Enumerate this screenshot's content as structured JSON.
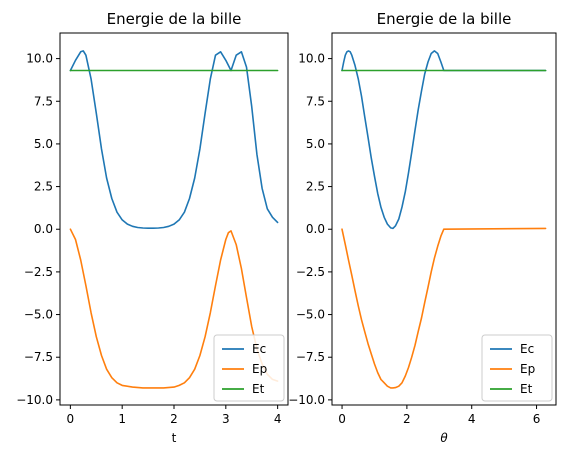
{
  "chart_data": [
    {
      "type": "line",
      "title": "Energie de la bille",
      "xlabel": "t",
      "xlim": [
        -0.2,
        4.2
      ],
      "ylim": [
        -10.3,
        11.5
      ],
      "xticks": [
        0,
        1,
        2,
        3,
        4
      ],
      "yticks": [
        -10.0,
        -7.5,
        -5.0,
        -2.5,
        0.0,
        2.5,
        5.0,
        7.5,
        10.0
      ],
      "legend_position": "lower-right",
      "series": [
        {
          "name": "Ec",
          "color": "#1f77b4",
          "x": [
            0.0,
            0.1,
            0.2,
            0.25,
            0.3,
            0.4,
            0.5,
            0.6,
            0.7,
            0.8,
            0.9,
            1.0,
            1.1,
            1.2,
            1.3,
            1.4,
            1.5,
            1.6,
            1.7,
            1.8,
            1.9,
            2.0,
            2.1,
            2.2,
            2.3,
            2.4,
            2.5,
            2.6,
            2.7,
            2.8,
            2.9,
            3.0,
            3.1,
            3.2,
            3.3,
            3.4,
            3.5,
            3.6,
            3.7,
            3.8,
            3.9,
            4.0
          ],
          "y": [
            9.3,
            9.9,
            10.4,
            10.45,
            10.2,
            8.8,
            6.8,
            4.7,
            3.0,
            1.8,
            1.0,
            0.55,
            0.3,
            0.17,
            0.1,
            0.07,
            0.06,
            0.06,
            0.07,
            0.1,
            0.17,
            0.3,
            0.55,
            1.0,
            1.8,
            3.0,
            4.7,
            6.8,
            8.8,
            10.2,
            10.4,
            9.9,
            9.3,
            10.2,
            10.4,
            9.5,
            7.2,
            4.4,
            2.4,
            1.2,
            0.7,
            0.4
          ]
        },
        {
          "name": "Ep",
          "color": "#ff7f0e",
          "x": [
            0.0,
            0.1,
            0.2,
            0.3,
            0.4,
            0.5,
            0.6,
            0.7,
            0.8,
            0.9,
            1.0,
            1.2,
            1.4,
            1.6,
            1.8,
            2.0,
            2.1,
            2.2,
            2.3,
            2.4,
            2.5,
            2.6,
            2.7,
            2.8,
            2.9,
            3.0,
            3.05,
            3.1,
            3.2,
            3.3,
            3.4,
            3.5,
            3.6,
            3.7,
            3.8,
            3.9,
            4.0
          ],
          "y": [
            0.0,
            -0.6,
            -1.8,
            -3.3,
            -4.9,
            -6.3,
            -7.4,
            -8.2,
            -8.7,
            -9.0,
            -9.15,
            -9.25,
            -9.3,
            -9.3,
            -9.3,
            -9.25,
            -9.15,
            -9.0,
            -8.7,
            -8.2,
            -7.4,
            -6.3,
            -4.9,
            -3.3,
            -1.8,
            -0.6,
            -0.2,
            -0.1,
            -0.9,
            -2.3,
            -4.0,
            -5.7,
            -7.0,
            -7.9,
            -8.5,
            -8.8,
            -8.9
          ]
        },
        {
          "name": "Et",
          "color": "#2ca02c",
          "x": [
            0.0,
            4.0
          ],
          "y": [
            9.3,
            9.3
          ]
        }
      ]
    },
    {
      "type": "line",
      "title": "Energie de la bille",
      "xlabel": "θ",
      "xlim": [
        -0.31,
        6.6
      ],
      "ylim": [
        -10.3,
        11.5
      ],
      "xticks": [
        0,
        2,
        4,
        6
      ],
      "yticks": [
        -10.0,
        -7.5,
        -5.0,
        -2.5,
        0.0,
        2.5,
        5.0,
        7.5,
        10.0
      ],
      "legend_position": "lower-right",
      "series": [
        {
          "name": "Ec",
          "color": "#1f77b4",
          "x": [
            0.0,
            0.05,
            0.1,
            0.15,
            0.2,
            0.25,
            0.3,
            0.4,
            0.5,
            0.6,
            0.7,
            0.8,
            0.9,
            1.0,
            1.1,
            1.2,
            1.3,
            1.4,
            1.5,
            1.57,
            1.65,
            1.75,
            1.85,
            1.95,
            2.05,
            2.15,
            2.25,
            2.35,
            2.45,
            2.55,
            2.65,
            2.75,
            2.85,
            2.95,
            3.05,
            3.14,
            6.28
          ],
          "y": [
            9.3,
            9.8,
            10.2,
            10.4,
            10.45,
            10.4,
            10.2,
            9.6,
            8.8,
            7.8,
            6.6,
            5.4,
            4.2,
            3.1,
            2.1,
            1.3,
            0.7,
            0.3,
            0.08,
            0.05,
            0.2,
            0.6,
            1.3,
            2.2,
            3.3,
            4.5,
            5.8,
            7.0,
            8.1,
            9.1,
            9.8,
            10.3,
            10.45,
            10.3,
            9.8,
            9.3,
            9.3
          ]
        },
        {
          "name": "Ep",
          "color": "#ff7f0e",
          "x": [
            0.0,
            0.1,
            0.2,
            0.3,
            0.4,
            0.5,
            0.6,
            0.7,
            0.8,
            0.9,
            1.0,
            1.1,
            1.2,
            1.3,
            1.4,
            1.5,
            1.57,
            1.65,
            1.75,
            1.85,
            1.95,
            2.05,
            2.15,
            2.25,
            2.35,
            2.45,
            2.55,
            2.65,
            2.75,
            2.85,
            2.95,
            3.05,
            3.14,
            6.28
          ],
          "y": [
            0.0,
            -0.9,
            -1.8,
            -2.7,
            -3.6,
            -4.5,
            -5.3,
            -6.0,
            -6.7,
            -7.3,
            -7.9,
            -8.4,
            -8.8,
            -9.0,
            -9.2,
            -9.3,
            -9.3,
            -9.28,
            -9.2,
            -9.0,
            -8.6,
            -8.1,
            -7.5,
            -6.8,
            -6.0,
            -5.2,
            -4.3,
            -3.4,
            -2.5,
            -1.7,
            -1.0,
            -0.4,
            0.0,
            0.05
          ]
        },
        {
          "name": "Et",
          "color": "#2ca02c",
          "x": [
            0.0,
            6.28
          ],
          "y": [
            9.3,
            9.3
          ]
        }
      ]
    }
  ]
}
